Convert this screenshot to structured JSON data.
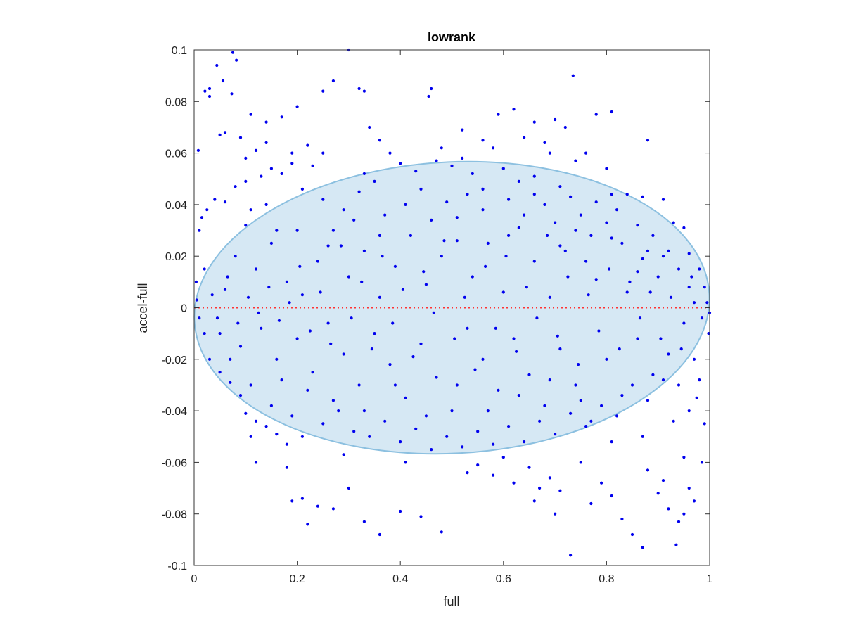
{
  "chart_data": {
    "type": "scatter",
    "title": "lowrank",
    "xlabel": "full",
    "ylabel": "accel-full",
    "xlim": [
      0,
      1
    ],
    "ylim": [
      -0.1,
      0.1
    ],
    "xticks": [
      0,
      0.2,
      0.4,
      0.6,
      0.8,
      1
    ],
    "xtick_labels": [
      "0",
      "0.2",
      "0.4",
      "0.6",
      "0.8",
      "1"
    ],
    "yticks": [
      -0.1,
      -0.08,
      -0.06,
      -0.04,
      -0.02,
      0,
      0.02,
      0.04,
      0.06,
      0.08,
      0.1
    ],
    "ytick_labels": [
      "-0.1",
      "-0.08",
      "-0.06",
      "-0.04",
      "-0.02",
      "0",
      "0.02",
      "0.04",
      "0.06",
      "0.08",
      "0.1"
    ],
    "grid": false,
    "box": true,
    "point_color": "#0000ee",
    "reference_line": {
      "y": 0,
      "style": "dotted",
      "color": "#ff3333"
    },
    "ellipse": {
      "center": [
        0.5,
        0
      ],
      "semi_axis_x": 0.5,
      "semi_axis_y": 0.0565,
      "angle_deg": -3,
      "fill_color": "#d6e8f4",
      "stroke_color": "#8cc0e0"
    },
    "points": [
      [
        0.008,
        0.061
      ],
      [
        0.021,
        0.084
      ],
      [
        0.03,
        0.085
      ],
      [
        0.03,
        0.082
      ],
      [
        0.044,
        0.094
      ],
      [
        0.056,
        0.088
      ],
      [
        0.075,
        0.099
      ],
      [
        0.082,
        0.096
      ],
      [
        0.073,
        0.083
      ],
      [
        0.3,
        0.1
      ],
      [
        0.27,
        0.088
      ],
      [
        0.25,
        0.084
      ],
      [
        0.32,
        0.085
      ],
      [
        0.33,
        0.084
      ],
      [
        0.46,
        0.085
      ],
      [
        0.455,
        0.082
      ],
      [
        0.735,
        0.09
      ],
      [
        0.59,
        0.075
      ],
      [
        0.62,
        0.077
      ],
      [
        0.66,
        0.072
      ],
      [
        0.7,
        0.073
      ],
      [
        0.72,
        0.07
      ],
      [
        0.78,
        0.075
      ],
      [
        0.81,
        0.076
      ],
      [
        0.88,
        0.065
      ],
      [
        0.2,
        0.078
      ],
      [
        0.19,
        0.06
      ],
      [
        0.11,
        0.075
      ],
      [
        0.14,
        0.072
      ],
      [
        0.17,
        0.074
      ],
      [
        0.05,
        0.067
      ],
      [
        0.06,
        0.068
      ],
      [
        0.09,
        0.066
      ],
      [
        0.1,
        0.058
      ],
      [
        0.12,
        0.061
      ],
      [
        0.23,
        0.055
      ],
      [
        0.22,
        0.063
      ],
      [
        0.34,
        0.07
      ],
      [
        0.36,
        0.065
      ],
      [
        0.38,
        0.06
      ],
      [
        0.52,
        0.069
      ],
      [
        0.56,
        0.065
      ],
      [
        0.58,
        0.062
      ],
      [
        0.64,
        0.066
      ],
      [
        0.68,
        0.064
      ],
      [
        0.74,
        0.057
      ],
      [
        0.76,
        0.06
      ],
      [
        0.84,
        0.044
      ],
      [
        0.87,
        0.043
      ],
      [
        0.91,
        0.042
      ],
      [
        0.93,
        0.033
      ],
      [
        0.95,
        0.031
      ],
      [
        0.96,
        0.021
      ],
      [
        0.98,
        0.015
      ],
      [
        0.99,
        0.008
      ],
      [
        0.995,
        0.002
      ],
      [
        1.0,
        -0.002
      ],
      [
        0.998,
        -0.01
      ],
      [
        0.97,
        -0.02
      ],
      [
        0.975,
        -0.035
      ],
      [
        0.99,
        -0.045
      ],
      [
        0.985,
        -0.06
      ],
      [
        0.96,
        -0.07
      ],
      [
        0.97,
        -0.075
      ],
      [
        0.95,
        -0.08
      ],
      [
        0.935,
        -0.092
      ],
      [
        0.94,
        -0.083
      ],
      [
        0.92,
        -0.078
      ],
      [
        0.9,
        -0.072
      ],
      [
        0.87,
        -0.093
      ],
      [
        0.85,
        -0.088
      ],
      [
        0.83,
        -0.082
      ],
      [
        0.81,
        -0.073
      ],
      [
        0.79,
        -0.068
      ],
      [
        0.77,
        -0.076
      ],
      [
        0.75,
        -0.06
      ],
      [
        0.73,
        -0.096
      ],
      [
        0.71,
        -0.071
      ],
      [
        0.69,
        -0.066
      ],
      [
        0.67,
        -0.07
      ],
      [
        0.65,
        -0.062
      ],
      [
        0.6,
        -0.058
      ],
      [
        0.58,
        -0.065
      ],
      [
        0.55,
        -0.061
      ],
      [
        0.48,
        -0.087
      ],
      [
        0.44,
        -0.081
      ],
      [
        0.4,
        -0.079
      ],
      [
        0.36,
        -0.088
      ],
      [
        0.33,
        -0.083
      ],
      [
        0.3,
        -0.07
      ],
      [
        0.27,
        -0.078
      ],
      [
        0.24,
        -0.077
      ],
      [
        0.22,
        -0.084
      ],
      [
        0.21,
        -0.074
      ],
      [
        0.19,
        -0.075
      ],
      [
        0.12,
        -0.06
      ],
      [
        0.11,
        -0.05
      ],
      [
        0.14,
        -0.046
      ],
      [
        0.16,
        -0.049
      ],
      [
        0.18,
        -0.053
      ],
      [
        0.1,
        -0.041
      ],
      [
        0.09,
        -0.034
      ],
      [
        0.07,
        -0.029
      ],
      [
        0.05,
        -0.025
      ],
      [
        0.03,
        -0.02
      ],
      [
        0.02,
        -0.01
      ],
      [
        0.01,
        -0.004
      ],
      [
        0.005,
        0.003
      ],
      [
        0.004,
        0.01
      ],
      [
        0.01,
        0.03
      ],
      [
        0.015,
        0.035
      ],
      [
        0.025,
        0.038
      ],
      [
        0.04,
        0.042
      ],
      [
        0.06,
        0.041
      ],
      [
        0.08,
        0.047
      ],
      [
        0.1,
        0.049
      ],
      [
        0.13,
        0.051
      ],
      [
        0.15,
        0.054
      ],
      [
        0.17,
        0.052
      ],
      [
        0.19,
        0.056
      ],
      [
        0.33,
        0.052
      ],
      [
        0.35,
        0.049
      ],
      [
        0.4,
        0.056
      ],
      [
        0.43,
        0.053
      ],
      [
        0.47,
        0.057
      ],
      [
        0.5,
        0.055
      ],
      [
        0.54,
        0.052
      ],
      [
        0.6,
        0.054
      ],
      [
        0.63,
        0.049
      ],
      [
        0.66,
        0.051
      ],
      [
        0.71,
        0.047
      ],
      [
        0.73,
        0.043
      ],
      [
        0.78,
        0.041
      ],
      [
        0.82,
        0.038
      ],
      [
        0.86,
        0.032
      ],
      [
        0.89,
        0.028
      ],
      [
        0.92,
        0.022
      ],
      [
        0.94,
        0.015
      ],
      [
        0.96,
        0.008
      ],
      [
        0.97,
        0.002
      ],
      [
        0.08,
        0.02
      ],
      [
        0.12,
        0.015
      ],
      [
        0.15,
        0.025
      ],
      [
        0.18,
        0.01
      ],
      [
        0.21,
        0.005
      ],
      [
        0.24,
        0.018
      ],
      [
        0.27,
        0.03
      ],
      [
        0.3,
        0.012
      ],
      [
        0.33,
        0.022
      ],
      [
        0.36,
        0.004
      ],
      [
        0.39,
        0.016
      ],
      [
        0.42,
        0.028
      ],
      [
        0.45,
        0.009
      ],
      [
        0.48,
        0.02
      ],
      [
        0.51,
        0.035
      ],
      [
        0.54,
        0.012
      ],
      [
        0.57,
        0.025
      ],
      [
        0.6,
        0.006
      ],
      [
        0.63,
        0.031
      ],
      [
        0.66,
        0.018
      ],
      [
        0.69,
        0.004
      ],
      [
        0.72,
        0.022
      ],
      [
        0.75,
        0.036
      ],
      [
        0.78,
        0.011
      ],
      [
        0.81,
        0.027
      ],
      [
        0.84,
        0.006
      ],
      [
        0.87,
        0.019
      ],
      [
        0.9,
        0.012
      ],
      [
        0.06,
        0.007
      ],
      [
        0.1,
        0.032
      ],
      [
        0.14,
        0.04
      ],
      [
        0.2,
        0.03
      ],
      [
        0.25,
        0.042
      ],
      [
        0.29,
        0.038
      ],
      [
        0.32,
        0.045
      ],
      [
        0.37,
        0.036
      ],
      [
        0.41,
        0.04
      ],
      [
        0.44,
        0.046
      ],
      [
        0.49,
        0.041
      ],
      [
        0.53,
        0.044
      ],
      [
        0.56,
        0.038
      ],
      [
        0.61,
        0.042
      ],
      [
        0.64,
        0.036
      ],
      [
        0.68,
        0.04
      ],
      [
        0.7,
        0.033
      ],
      [
        0.74,
        0.03
      ],
      [
        0.77,
        0.028
      ],
      [
        0.8,
        0.033
      ],
      [
        0.83,
        0.025
      ],
      [
        0.88,
        0.022
      ],
      [
        0.05,
        -0.01
      ],
      [
        0.09,
        -0.015
      ],
      [
        0.13,
        -0.008
      ],
      [
        0.16,
        -0.02
      ],
      [
        0.2,
        -0.012
      ],
      [
        0.23,
        -0.025
      ],
      [
        0.26,
        -0.006
      ],
      [
        0.29,
        -0.018
      ],
      [
        0.32,
        -0.03
      ],
      [
        0.35,
        -0.01
      ],
      [
        0.38,
        -0.022
      ],
      [
        0.41,
        -0.035
      ],
      [
        0.44,
        -0.014
      ],
      [
        0.47,
        -0.027
      ],
      [
        0.5,
        -0.04
      ],
      [
        0.53,
        -0.008
      ],
      [
        0.56,
        -0.02
      ],
      [
        0.59,
        -0.032
      ],
      [
        0.62,
        -0.012
      ],
      [
        0.65,
        -0.026
      ],
      [
        0.68,
        -0.038
      ],
      [
        0.71,
        -0.016
      ],
      [
        0.74,
        -0.03
      ],
      [
        0.77,
        -0.044
      ],
      [
        0.8,
        -0.02
      ],
      [
        0.83,
        -0.034
      ],
      [
        0.86,
        -0.012
      ],
      [
        0.89,
        -0.026
      ],
      [
        0.92,
        -0.018
      ],
      [
        0.95,
        -0.006
      ],
      [
        0.07,
        -0.02
      ],
      [
        0.11,
        -0.03
      ],
      [
        0.15,
        -0.038
      ],
      [
        0.19,
        -0.042
      ],
      [
        0.22,
        -0.032
      ],
      [
        0.25,
        -0.045
      ],
      [
        0.28,
        -0.04
      ],
      [
        0.31,
        -0.048
      ],
      [
        0.34,
        -0.05
      ],
      [
        0.37,
        -0.044
      ],
      [
        0.4,
        -0.052
      ],
      [
        0.43,
        -0.047
      ],
      [
        0.46,
        -0.055
      ],
      [
        0.49,
        -0.05
      ],
      [
        0.52,
        -0.054
      ],
      [
        0.55,
        -0.048
      ],
      [
        0.58,
        -0.053
      ],
      [
        0.61,
        -0.046
      ],
      [
        0.64,
        -0.052
      ],
      [
        0.67,
        -0.044
      ],
      [
        0.7,
        -0.049
      ],
      [
        0.73,
        -0.041
      ],
      [
        0.76,
        -0.046
      ],
      [
        0.79,
        -0.038
      ],
      [
        0.82,
        -0.042
      ],
      [
        0.85,
        -0.03
      ],
      [
        0.88,
        -0.036
      ],
      [
        0.91,
        -0.028
      ],
      [
        0.94,
        -0.03
      ],
      [
        0.96,
        -0.04
      ],
      [
        0.02,
        0.015
      ],
      [
        0.035,
        0.005
      ],
      [
        0.045,
        -0.004
      ],
      [
        0.065,
        0.012
      ],
      [
        0.085,
        -0.006
      ],
      [
        0.105,
        0.004
      ],
      [
        0.125,
        -0.002
      ],
      [
        0.145,
        0.008
      ],
      [
        0.165,
        -0.005
      ],
      [
        0.185,
        0.002
      ],
      [
        0.205,
        0.016
      ],
      [
        0.225,
        -0.009
      ],
      [
        0.245,
        0.006
      ],
      [
        0.265,
        -0.014
      ],
      [
        0.285,
        0.024
      ],
      [
        0.305,
        -0.004
      ],
      [
        0.325,
        0.01
      ],
      [
        0.345,
        -0.016
      ],
      [
        0.365,
        0.02
      ],
      [
        0.385,
        -0.006
      ],
      [
        0.405,
        0.007
      ],
      [
        0.425,
        -0.019
      ],
      [
        0.445,
        0.014
      ],
      [
        0.465,
        -0.002
      ],
      [
        0.485,
        0.026
      ],
      [
        0.505,
        -0.012
      ],
      [
        0.525,
        0.004
      ],
      [
        0.545,
        -0.024
      ],
      [
        0.565,
        0.016
      ],
      [
        0.585,
        -0.008
      ],
      [
        0.605,
        0.02
      ],
      [
        0.625,
        -0.017
      ],
      [
        0.645,
        0.008
      ],
      [
        0.665,
        -0.004
      ],
      [
        0.685,
        0.028
      ],
      [
        0.705,
        -0.011
      ],
      [
        0.725,
        0.012
      ],
      [
        0.745,
        -0.022
      ],
      [
        0.765,
        0.005
      ],
      [
        0.785,
        -0.009
      ],
      [
        0.805,
        0.015
      ],
      [
        0.825,
        -0.016
      ],
      [
        0.845,
        0.01
      ],
      [
        0.865,
        -0.004
      ],
      [
        0.885,
        0.006
      ],
      [
        0.905,
        -0.012
      ],
      [
        0.925,
        0.004
      ],
      [
        0.945,
        -0.016
      ],
      [
        0.965,
        0.012
      ],
      [
        0.985,
        -0.004
      ],
      [
        0.11,
        0.038
      ],
      [
        0.16,
        0.03
      ],
      [
        0.21,
        0.046
      ],
      [
        0.26,
        0.024
      ],
      [
        0.31,
        0.034
      ],
      [
        0.36,
        0.028
      ],
      [
        0.46,
        0.034
      ],
      [
        0.51,
        0.026
      ],
      [
        0.56,
        0.046
      ],
      [
        0.61,
        0.028
      ],
      [
        0.66,
        0.044
      ],
      [
        0.71,
        0.024
      ],
      [
        0.76,
        0.018
      ],
      [
        0.81,
        0.044
      ],
      [
        0.86,
        0.014
      ],
      [
        0.91,
        0.02
      ],
      [
        0.12,
        -0.044
      ],
      [
        0.17,
        -0.028
      ],
      [
        0.21,
        -0.05
      ],
      [
        0.27,
        -0.036
      ],
      [
        0.33,
        -0.04
      ],
      [
        0.39,
        -0.03
      ],
      [
        0.45,
        -0.042
      ],
      [
        0.51,
        -0.03
      ],
      [
        0.57,
        -0.04
      ],
      [
        0.63,
        -0.034
      ],
      [
        0.69,
        -0.028
      ],
      [
        0.75,
        -0.036
      ],
      [
        0.81,
        -0.052
      ],
      [
        0.87,
        -0.05
      ],
      [
        0.93,
        -0.044
      ],
      [
        0.98,
        -0.028
      ],
      [
        0.14,
        0.064
      ],
      [
        0.25,
        0.06
      ],
      [
        0.48,
        0.062
      ],
      [
        0.52,
        0.058
      ],
      [
        0.69,
        0.06
      ],
      [
        0.8,
        0.054
      ],
      [
        0.62,
        -0.068
      ],
      [
        0.66,
        -0.075
      ],
      [
        0.7,
        -0.08
      ],
      [
        0.88,
        -0.063
      ],
      [
        0.91,
        -0.067
      ],
      [
        0.95,
        -0.058
      ],
      [
        0.18,
        -0.062
      ],
      [
        0.29,
        -0.057
      ],
      [
        0.41,
        -0.06
      ],
      [
        0.53,
        -0.064
      ]
    ]
  }
}
